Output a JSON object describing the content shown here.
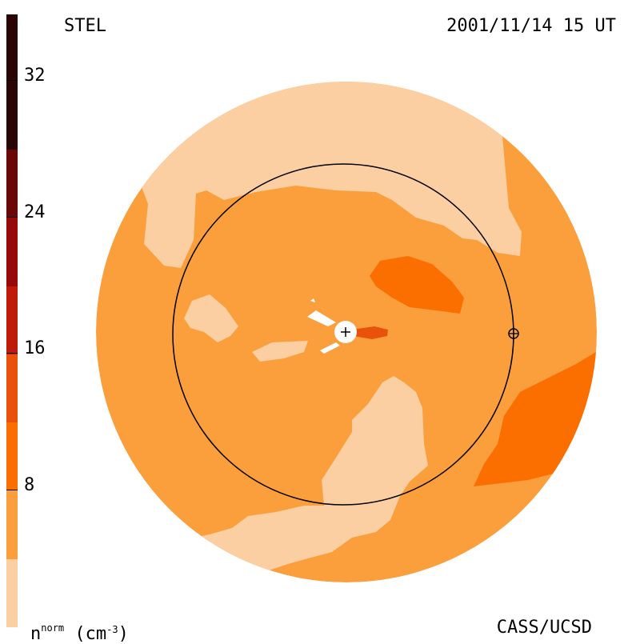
{
  "header": {
    "instrument": "STEL",
    "datetime": "2001/11/14 15 UT"
  },
  "footer": {
    "credit": "CASS/UCSD"
  },
  "colorbar": {
    "quantity": "n",
    "superscript": "norm",
    "unit_base": "(cm",
    "unit_exp": "-3",
    "unit_close": ")",
    "tick_labels": [
      "32",
      "24",
      "16",
      "8"
    ],
    "bands": [
      {
        "color": "#fbcfa2"
      },
      {
        "color": "#fb9e3c"
      },
      {
        "color": "#fb6e00"
      },
      {
        "color": "#e8520a"
      },
      {
        "color": "#c01a0a"
      },
      {
        "color": "#960a0a"
      },
      {
        "color": "#6a0808"
      },
      {
        "color": "#2a0505"
      }
    ]
  },
  "map": {
    "sun_marker": "+",
    "earth_marker": "⊕",
    "colors": {
      "light": "#fbcfa2",
      "mid": "#fb9e3c",
      "dark": "#fb6e00",
      "darker": "#e8520a"
    }
  }
}
